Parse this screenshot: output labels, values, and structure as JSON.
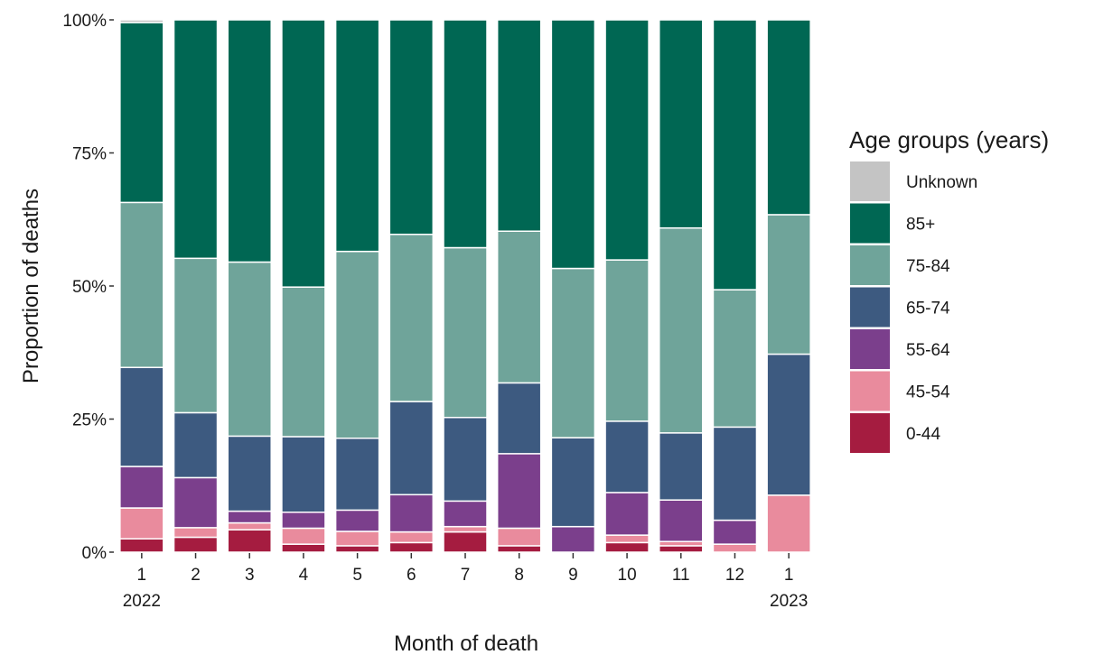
{
  "chart_data": {
    "type": "bar",
    "stacked": true,
    "normalized": true,
    "xlabel": "Month of death",
    "ylabel": "Proportion of deaths",
    "ylim": [
      0,
      1
    ],
    "y_ticks": [
      "0%",
      "25%",
      "50%",
      "75%",
      "100%"
    ],
    "y_tick_values": [
      0,
      0.25,
      0.5,
      0.75,
      1
    ],
    "categories": [
      "1",
      "2",
      "3",
      "4",
      "5",
      "6",
      "7",
      "8",
      "9",
      "10",
      "11",
      "12",
      "1"
    ],
    "category_sublabels": [
      "2022",
      "",
      "",
      "",
      "",
      "",
      "",
      "",
      "",
      "",
      "",
      "",
      "2023"
    ],
    "legend": {
      "title": "Age groups (years)",
      "placement": "right",
      "entries": [
        "Unknown",
        "85+",
        "75-84",
        "65-74",
        "55-64",
        "45-54",
        "0-44"
      ]
    },
    "grid": false,
    "series": [
      {
        "name": "0-44",
        "color": "#A51C40",
        "values": [
          0.025,
          0.028,
          0.042,
          0.015,
          0.012,
          0.018,
          0.038,
          0.012,
          0.0,
          0.018,
          0.012,
          0.0,
          0.0
        ]
      },
      {
        "name": "45-54",
        "color": "#E98B9D",
        "values": [
          0.058,
          0.018,
          0.013,
          0.03,
          0.027,
          0.02,
          0.01,
          0.033,
          0.0,
          0.014,
          0.008,
          0.015,
          0.107
        ]
      },
      {
        "name": "55-64",
        "color": "#7B3F8C",
        "values": [
          0.078,
          0.094,
          0.022,
          0.03,
          0.04,
          0.07,
          0.048,
          0.14,
          0.048,
          0.08,
          0.078,
          0.045,
          0.0
        ]
      },
      {
        "name": "65-74",
        "color": "#3D5A80",
        "values": [
          0.186,
          0.122,
          0.141,
          0.142,
          0.135,
          0.175,
          0.157,
          0.133,
          0.167,
          0.134,
          0.126,
          0.175,
          0.265
        ]
      },
      {
        "name": "75-84",
        "color": "#6FA49A",
        "values": [
          0.31,
          0.29,
          0.327,
          0.281,
          0.351,
          0.314,
          0.319,
          0.285,
          0.318,
          0.303,
          0.385,
          0.258,
          0.262
        ]
      },
      {
        "name": "85+",
        "color": "#006753",
        "values": [
          0.338,
          0.448,
          0.455,
          0.502,
          0.435,
          0.403,
          0.428,
          0.397,
          0.467,
          0.451,
          0.391,
          0.507,
          0.366
        ]
      },
      {
        "name": "Unknown",
        "color": "#C4C4C4",
        "values": [
          0.005,
          0.0,
          0.0,
          0.0,
          0.0,
          0.0,
          0.0,
          0.0,
          0.0,
          0.0,
          0.0,
          0.0,
          0.0
        ]
      }
    ]
  }
}
